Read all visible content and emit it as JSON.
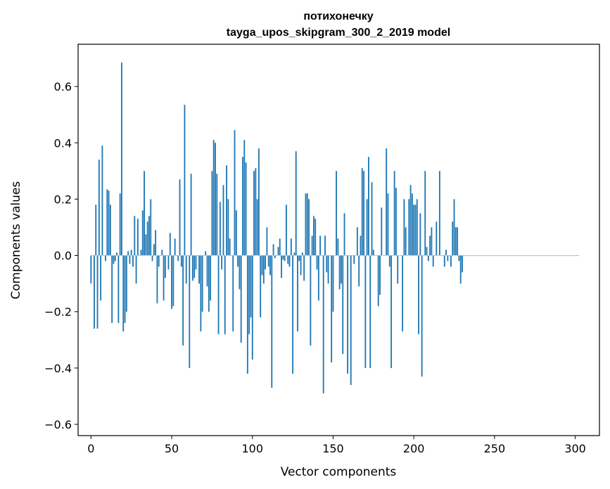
{
  "chart_data": {
    "type": "bar",
    "title_line1": "потихонечку",
    "title_line2": "tayga_upos_skipgram_300_2_2019 model",
    "xlabel": "Vector components",
    "ylabel": "Components values",
    "xlim": [
      -8,
      315
    ],
    "ylim": [
      -0.64,
      0.75
    ],
    "xticks": [
      0,
      50,
      100,
      150,
      200,
      250,
      300
    ],
    "xtick_labels": [
      "0",
      "50",
      "100",
      "150",
      "200",
      "250",
      "300"
    ],
    "yticks": [
      -0.6,
      -0.4,
      -0.2,
      0.0,
      0.2,
      0.4,
      0.6
    ],
    "ytick_labels": [
      "−0.6",
      "−0.4",
      "−0.2",
      "0.0",
      "0.2",
      "0.4",
      "0.6"
    ],
    "bar_color": "#1f77b4",
    "grid": false,
    "values": [
      -0.1,
      0.0,
      -0.26,
      0.18,
      -0.26,
      0.34,
      -0.16,
      0.39,
      0.0,
      -0.02,
      0.235,
      0.23,
      0.18,
      -0.24,
      -0.03,
      -0.02,
      0.01,
      -0.24,
      0.22,
      0.685,
      -0.27,
      -0.24,
      -0.2,
      0.015,
      -0.03,
      0.02,
      -0.04,
      0.14,
      -0.1,
      0.13,
      0.0,
      0.02,
      0.16,
      0.3,
      0.075,
      0.12,
      0.14,
      0.2,
      -0.02,
      0.04,
      0.09,
      -0.17,
      -0.04,
      0.0,
      0.02,
      -0.16,
      -0.08,
      0.0,
      -0.05,
      0.08,
      -0.19,
      -0.18,
      0.06,
      0.0,
      -0.02,
      0.27,
      -0.04,
      -0.32,
      0.535,
      -0.1,
      0.0,
      -0.4,
      0.29,
      -0.09,
      -0.08,
      -0.05,
      0.0,
      -0.1,
      -0.27,
      -0.2,
      0.0,
      0.015,
      -0.11,
      -0.2,
      -0.16,
      0.3,
      0.41,
      0.4,
      0.29,
      -0.28,
      0.19,
      -0.05,
      0.25,
      -0.28,
      0.32,
      0.2,
      0.06,
      0.0,
      -0.27,
      0.445,
      0.16,
      -0.04,
      -0.12,
      -0.31,
      0.35,
      0.41,
      0.33,
      -0.42,
      -0.28,
      -0.22,
      -0.37,
      0.3,
      0.31,
      0.2,
      0.38,
      -0.22,
      -0.07,
      -0.1,
      -0.05,
      0.1,
      -0.04,
      -0.07,
      -0.47,
      0.04,
      -0.01,
      0.0,
      0.03,
      0.06,
      -0.08,
      -0.015,
      -0.02,
      0.18,
      -0.03,
      -0.04,
      0.06,
      -0.42,
      0.01,
      0.37,
      -0.27,
      -0.02,
      -0.07,
      0.01,
      -0.09,
      0.22,
      0.22,
      0.2,
      -0.32,
      0.07,
      0.14,
      0.13,
      -0.05,
      -0.16,
      0.07,
      0.0,
      -0.49,
      0.07,
      -0.06,
      -0.1,
      0.0,
      -0.38,
      -0.2,
      0.0,
      0.3,
      0.06,
      -0.12,
      -0.1,
      -0.35,
      0.15,
      0.0,
      -0.42,
      0.0,
      -0.46,
      0.0,
      -0.03,
      0.0,
      0.1,
      -0.11,
      0.07,
      0.31,
      0.3,
      -0.4,
      0.2,
      0.35,
      -0.4,
      0.26,
      0.02,
      0.0,
      0.0,
      -0.18,
      -0.14,
      0.17,
      0.0,
      0.0,
      0.38,
      0.22,
      -0.04,
      -0.4,
      0.0,
      0.3,
      0.24,
      -0.1,
      0.0,
      0.0,
      -0.27,
      0.2,
      0.1,
      0.0,
      0.2,
      0.25,
      0.22,
      0.18,
      0.18,
      0.2,
      -0.28,
      0.15,
      -0.43,
      0.0,
      0.3,
      0.03,
      -0.02,
      0.07,
      0.1,
      -0.04,
      0.0,
      0.12,
      0.0,
      0.3,
      0.0,
      0.0,
      -0.04,
      0.02,
      -0.02,
      0.0,
      -0.04,
      0.12,
      0.2,
      0.1,
      0.1,
      -0.02,
      -0.1,
      -0.06,
      0.0,
      0.0,
      0.0,
      0.0,
      0.0,
      0.0,
      0.0,
      0.0,
      0.0,
      0.0,
      0.0,
      0.0,
      0.0,
      0.0,
      0.0,
      0.0,
      0.0,
      0.0,
      0.0,
      0.0,
      0.0,
      0.0,
      0.0,
      0.0,
      0.0,
      0.0,
      0.0,
      0.0,
      0.0,
      0.0,
      0.0,
      0.0,
      0.0,
      0.0,
      0.0,
      0.0,
      0.0,
      0.0,
      0.0,
      0.0,
      0.0,
      0.0,
      0.0,
      0.0,
      0.0,
      0.0,
      0.0,
      0.0,
      0.0,
      0.0,
      0.0,
      0.0,
      0.0,
      0.0,
      0.0,
      0.0,
      0.0,
      0.0,
      0.0,
      0.0,
      0.0,
      0.0,
      0.0,
      0.0,
      0.0,
      0.0,
      0.0,
      0.0,
      0.0,
      0.0,
      0.0,
      0.0
    ]
  }
}
